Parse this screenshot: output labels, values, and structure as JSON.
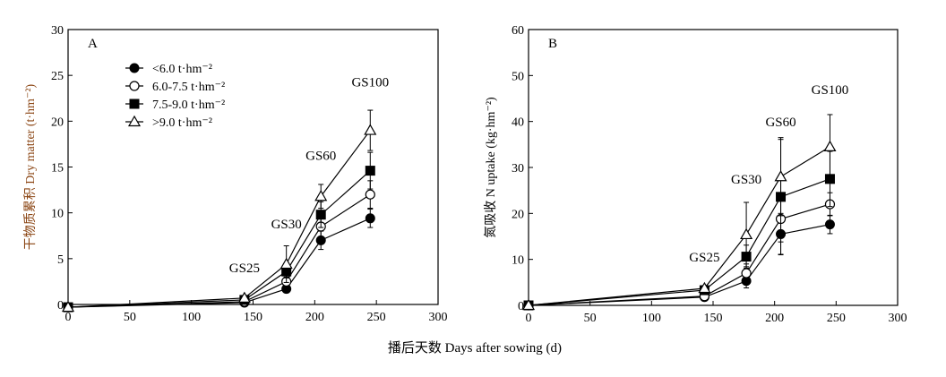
{
  "x_axis_label": "播后天数 Days after sowing (d)",
  "chart_data": [
    {
      "type": "line",
      "panel_label": "A",
      "ylabel": "干物质累积 Dry matter (t·hm⁻²)",
      "xlim": [
        0,
        300
      ],
      "ylim": [
        0,
        30
      ],
      "xticks": [
        0,
        50,
        100,
        150,
        200,
        250,
        300
      ],
      "yticks": [
        0,
        5,
        10,
        15,
        20,
        25,
        30
      ],
      "x": [
        0,
        143,
        177,
        205,
        245
      ],
      "legend_position": "top-left",
      "grid": false,
      "series": [
        {
          "name": "<6.0 t·hm⁻²",
          "marker": "filled-circle",
          "values": [
            -0.3,
            0.2,
            1.7,
            7.0,
            9.4
          ],
          "err": [
            0,
            0.1,
            0.4,
            1.0,
            1.0
          ]
        },
        {
          "name": "6.0-7.5 t·hm⁻²",
          "marker": "open-circle",
          "values": [
            -0.3,
            0.3,
            2.5,
            8.5,
            12.0
          ],
          "err": [
            0,
            0.1,
            0.5,
            1.2,
            1.5
          ]
        },
        {
          "name": "7.5-9.0 t·hm⁻²",
          "marker": "filled-square",
          "values": [
            -0.3,
            0.5,
            3.6,
            9.8,
            14.6
          ],
          "err": [
            0,
            0.1,
            0.7,
            1.4,
            2.0
          ]
        },
        {
          "name": ">9.0 t·hm⁻²",
          "marker": "open-triangle",
          "values": [
            -0.3,
            0.7,
            4.4,
            11.8,
            19.0
          ],
          "err": [
            0,
            0.2,
            2.0,
            1.3,
            2.2
          ]
        }
      ],
      "annotations": [
        {
          "text": "GS25",
          "x": 143,
          "y": 3.5
        },
        {
          "text": "GS30",
          "x": 177,
          "y": 8.3
        },
        {
          "text": "GS60",
          "x": 205,
          "y": 15.8
        },
        {
          "text": "GS100",
          "x": 245,
          "y": 23.8
        }
      ]
    },
    {
      "type": "line",
      "panel_label": "B",
      "ylabel": "氮吸收 N uptake (kg·hm⁻²)",
      "xlim": [
        0,
        300
      ],
      "ylim": [
        0,
        60
      ],
      "xticks": [
        0,
        50,
        100,
        150,
        200,
        250,
        300
      ],
      "yticks": [
        0,
        10,
        20,
        30,
        40,
        50,
        60
      ],
      "x": [
        0,
        143,
        177,
        205,
        245
      ],
      "grid": false,
      "series": [
        {
          "name": "<6.0 t·hm⁻²",
          "marker": "filled-circle",
          "values": [
            0,
            1.8,
            5.3,
            15.5,
            17.6
          ],
          "err": [
            0,
            0.3,
            1.5,
            4.5,
            2.0
          ]
        },
        {
          "name": "6.0-7.5 t·hm⁻²",
          "marker": "open-circle",
          "values": [
            0,
            2.0,
            7.0,
            18.8,
            22.0
          ],
          "err": [
            0,
            0.4,
            2.0,
            5.0,
            2.5
          ]
        },
        {
          "name": "7.5-9.0 t·hm⁻²",
          "marker": "filled-square",
          "values": [
            0,
            3.3,
            10.6,
            23.6,
            27.5
          ],
          "err": [
            0,
            0.5,
            2.5,
            12.5,
            6.0
          ]
        },
        {
          "name": ">9.0 t·hm⁻²",
          "marker": "open-triangle",
          "values": [
            0,
            3.7,
            15.4,
            28.0,
            34.5
          ],
          "err": [
            0,
            0.6,
            7.0,
            8.5,
            7.0
          ]
        }
      ],
      "annotations": [
        {
          "text": "GS25",
          "x": 143,
          "y": 9.5
        },
        {
          "text": "GS30",
          "x": 177,
          "y": 26.5
        },
        {
          "text": "GS60",
          "x": 205,
          "y": 39.0
        },
        {
          "text": "GS100",
          "x": 245,
          "y": 46.0
        }
      ]
    }
  ]
}
